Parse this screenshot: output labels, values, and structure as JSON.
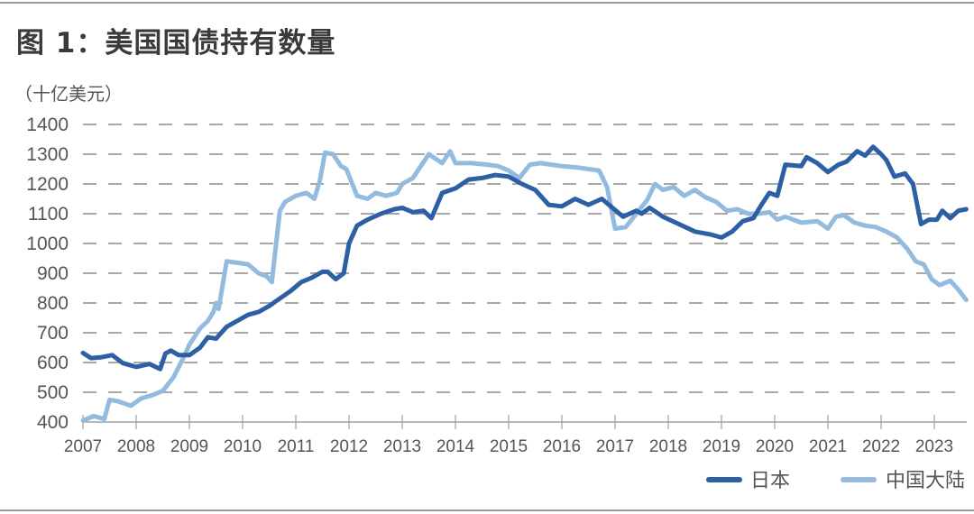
{
  "title": "图 1：美国国债持有数量",
  "unit": "（十亿美元）",
  "legend": [
    {
      "label": "日本",
      "color": "#2c5fa3"
    },
    {
      "label": "中国大陆",
      "color": "#93bbe0"
    }
  ],
  "chart_data": {
    "type": "line",
    "title": "图 1：美国国债持有数量",
    "ylabel": "十亿美元",
    "xlabel": "",
    "ylim": [
      400,
      1400
    ],
    "yticks": [
      400,
      500,
      600,
      700,
      800,
      900,
      1000,
      1100,
      1200,
      1300,
      1400
    ],
    "xticks": [
      "2007",
      "2008",
      "2009",
      "2010",
      "2011",
      "2012",
      "2013",
      "2014",
      "2015",
      "2016",
      "2017",
      "2018",
      "2019",
      "2020",
      "2021",
      "2022",
      "2023"
    ],
    "grid": "horizontal dashed",
    "legend_position": "bottom-right",
    "series": [
      {
        "name": "日本",
        "color": "#2c5fa3",
        "x": [
          2007.0,
          2007.15,
          2007.35,
          2007.55,
          2007.75,
          2008.0,
          2008.25,
          2008.45,
          2008.55,
          2008.65,
          2008.8,
          2009.0,
          2009.2,
          2009.35,
          2009.5,
          2009.7,
          2009.9,
          2010.1,
          2010.3,
          2010.5,
          2010.7,
          2010.9,
          2011.1,
          2011.3,
          2011.5,
          2011.6,
          2011.75,
          2011.9,
          2012.0,
          2012.15,
          2012.35,
          2012.6,
          2012.85,
          2013.0,
          2013.2,
          2013.4,
          2013.55,
          2013.75,
          2014.0,
          2014.25,
          2014.5,
          2014.75,
          2015.0,
          2015.25,
          2015.5,
          2015.75,
          2016.0,
          2016.25,
          2016.5,
          2016.75,
          2016.95,
          2017.15,
          2017.4,
          2017.5,
          2017.65,
          2017.9,
          2018.2,
          2018.5,
          2018.8,
          2019.0,
          2019.2,
          2019.4,
          2019.6,
          2019.75,
          2019.9,
          2020.05,
          2020.2,
          2020.5,
          2020.6,
          2020.8,
          2021.0,
          2021.2,
          2021.35,
          2021.55,
          2021.7,
          2021.85,
          2022.0,
          2022.1,
          2022.25,
          2022.45,
          2022.6,
          2022.75,
          2022.9,
          2023.05,
          2023.15,
          2023.3,
          2023.45,
          2023.6
        ],
        "values": [
          632,
          615,
          618,
          625,
          598,
          585,
          595,
          578,
          630,
          640,
          625,
          625,
          650,
          685,
          680,
          720,
          740,
          760,
          770,
          790,
          815,
          840,
          870,
          885,
          905,
          905,
          880,
          900,
          1000,
          1060,
          1080,
          1100,
          1115,
          1120,
          1105,
          1110,
          1085,
          1170,
          1185,
          1215,
          1220,
          1230,
          1225,
          1200,
          1180,
          1130,
          1125,
          1150,
          1130,
          1150,
          1120,
          1090,
          1110,
          1100,
          1120,
          1090,
          1065,
          1040,
          1030,
          1020,
          1040,
          1075,
          1085,
          1130,
          1170,
          1160,
          1265,
          1260,
          1290,
          1270,
          1240,
          1265,
          1275,
          1310,
          1295,
          1325,
          1300,
          1280,
          1225,
          1235,
          1200,
          1065,
          1080,
          1080,
          1110,
          1085,
          1110,
          1115
        ]
      },
      {
        "name": "中国大陆",
        "color": "#93bbe0",
        "x": [
          2007.0,
          2007.2,
          2007.4,
          2007.5,
          2007.65,
          2007.9,
          2008.1,
          2008.3,
          2008.5,
          2008.7,
          2008.9,
          2009.0,
          2009.2,
          2009.35,
          2009.45,
          2009.5,
          2009.55,
          2009.7,
          2009.9,
          2010.1,
          2010.3,
          2010.45,
          2010.5,
          2010.55,
          2010.7,
          2010.8,
          2011.0,
          2011.2,
          2011.35,
          2011.45,
          2011.55,
          2011.7,
          2011.85,
          2011.95,
          2012.15,
          2012.35,
          2012.5,
          2012.7,
          2012.9,
          2013.0,
          2013.2,
          2013.35,
          2013.5,
          2013.75,
          2013.9,
          2014.0,
          2014.3,
          2014.6,
          2014.8,
          2015.0,
          2015.2,
          2015.4,
          2015.6,
          2015.8,
          2016.0,
          2016.3,
          2016.5,
          2016.7,
          2016.85,
          2017.0,
          2017.2,
          2017.4,
          2017.6,
          2017.75,
          2017.9,
          2018.1,
          2018.3,
          2018.5,
          2018.7,
          2018.9,
          2019.1,
          2019.3,
          2019.5,
          2019.7,
          2019.9,
          2020.05,
          2020.2,
          2020.5,
          2020.8,
          2021.0,
          2021.15,
          2021.3,
          2021.5,
          2021.7,
          2021.9,
          2022.1,
          2022.3,
          2022.5,
          2022.65,
          2022.8,
          2022.95,
          2023.1,
          2023.3,
          2023.45,
          2023.6
        ],
        "values": [
          405,
          420,
          410,
          475,
          470,
          455,
          480,
          490,
          505,
          550,
          620,
          660,
          715,
          740,
          770,
          800,
          780,
          940,
          935,
          930,
          900,
          890,
          880,
          870,
          1110,
          1140,
          1160,
          1170,
          1150,
          1210,
          1305,
          1300,
          1260,
          1250,
          1160,
          1150,
          1170,
          1160,
          1170,
          1200,
          1220,
          1260,
          1300,
          1270,
          1310,
          1270,
          1270,
          1265,
          1260,
          1245,
          1220,
          1265,
          1270,
          1265,
          1260,
          1255,
          1250,
          1245,
          1190,
          1050,
          1055,
          1100,
          1145,
          1200,
          1180,
          1190,
          1160,
          1180,
          1155,
          1140,
          1110,
          1115,
          1100,
          1100,
          1105,
          1080,
          1090,
          1070,
          1075,
          1050,
          1090,
          1095,
          1070,
          1060,
          1055,
          1040,
          1020,
          980,
          940,
          930,
          880,
          860,
          875,
          845,
          810
        ]
      }
    ]
  }
}
